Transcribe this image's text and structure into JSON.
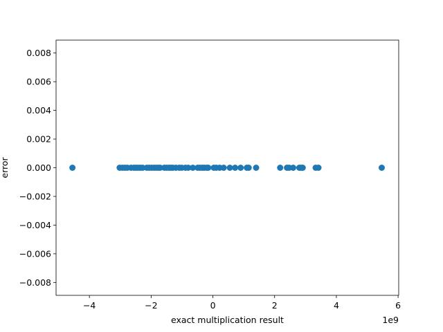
{
  "chart_data": {
    "type": "scatter",
    "title": "",
    "xlabel": "exact multiplication result",
    "ylabel": "error",
    "x_offset_label": "1e9",
    "x_scale": 1000000000,
    "xlim": [
      -5.08,
      6.02
    ],
    "ylim": [
      -0.0089,
      0.0089
    ],
    "x_ticks": [
      -4,
      -2,
      0,
      2,
      4,
      6
    ],
    "x_tick_labels": [
      "−4",
      "−2",
      "0",
      "2",
      "4",
      "6"
    ],
    "y_ticks": [
      -0.008,
      -0.006,
      -0.004,
      -0.002,
      0,
      0.002,
      0.004,
      0.006,
      0.008
    ],
    "y_tick_labels": [
      "−0.008",
      "−0.006",
      "−0.004",
      "−0.002",
      "0.000",
      "0.002",
      "0.004",
      "0.006",
      "0.008"
    ],
    "grid": false,
    "color": "#1f77b4",
    "series": [
      {
        "x": [
          -4.55,
          -3.02,
          -2.93,
          -2.85,
          -2.77,
          -2.65,
          -2.56,
          -2.49,
          -2.42,
          -2.35,
          -2.28,
          -2.14,
          -2.06,
          -1.98,
          -1.9,
          -1.83,
          -1.76,
          -1.71,
          -1.57,
          -1.5,
          -1.42,
          -1.36,
          -1.3,
          -1.2,
          -1.09,
          -1.01,
          -0.89,
          -0.8,
          -0.65,
          -0.49,
          -0.42,
          -0.34,
          -0.28,
          -0.2,
          -0.15,
          0.03,
          0.11,
          0.22,
          0.35,
          0.55,
          0.72,
          0.9,
          1.1,
          1.16,
          1.4,
          2.18,
          2.4,
          2.47,
          2.6,
          2.8,
          2.86,
          2.91,
          3.33,
          3.42,
          5.47
        ],
        "y": [
          0,
          0,
          0,
          0,
          0,
          0,
          0,
          0,
          0,
          0,
          0,
          0,
          0,
          0,
          0,
          0,
          0,
          0,
          0,
          0,
          0,
          0,
          0,
          0,
          0,
          0,
          0,
          0,
          0,
          0,
          0,
          0,
          0,
          0,
          0,
          0,
          0,
          0,
          0,
          0,
          0,
          0,
          0,
          0,
          0,
          0,
          0,
          0,
          0,
          0,
          0,
          0,
          0,
          0,
          0
        ]
      }
    ]
  }
}
